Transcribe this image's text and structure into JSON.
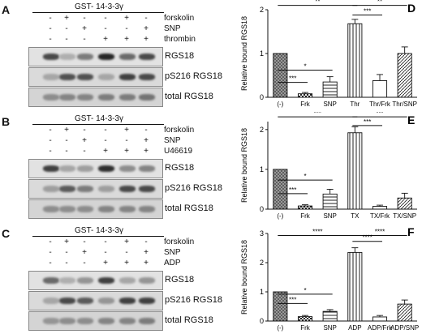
{
  "panels_left": [
    {
      "letter": "A",
      "header": "GST- 14-3-3γ",
      "treatments": [
        {
          "name": "forskolin",
          "signs": [
            "-",
            "+",
            "-",
            "-",
            "+",
            "-"
          ]
        },
        {
          "name": "SNP",
          "signs": [
            "-",
            "-",
            "+",
            "-",
            "-",
            "+"
          ]
        },
        {
          "name": "thrombin",
          "signs": [
            "-",
            "-",
            "-",
            "+",
            "+",
            "+"
          ]
        }
      ],
      "blots": [
        "RGS18",
        "pS216 RGS18",
        "total RGS18"
      ]
    },
    {
      "letter": "B",
      "header": "GST- 14-3-3γ",
      "treatments": [
        {
          "name": "forskolin",
          "signs": [
            "-",
            "+",
            "-",
            "-",
            "+",
            "-"
          ]
        },
        {
          "name": "SNP",
          "signs": [
            "-",
            "-",
            "+",
            "-",
            "-",
            "+"
          ]
        },
        {
          "name": "U46619",
          "signs": [
            "-",
            "-",
            "-",
            "+",
            "+",
            "+"
          ]
        }
      ],
      "blots": [
        "RGS18",
        "pS216 RGS18",
        "total RGS18"
      ]
    },
    {
      "letter": "C",
      "header": "GST- 14-3-3γ",
      "treatments": [
        {
          "name": "forskolin",
          "signs": [
            "-",
            "+",
            "-",
            "-",
            "+",
            "-"
          ]
        },
        {
          "name": "SNP",
          "signs": [
            "-",
            "-",
            "+",
            "-",
            "-",
            "+"
          ]
        },
        {
          "name": "ADP",
          "signs": [
            "-",
            "-",
            "-",
            "+",
            "+",
            "+"
          ]
        }
      ],
      "blots": [
        "RGS18",
        "pS216 RGS18",
        "total RGS18"
      ]
    }
  ],
  "chart_data": [
    {
      "letter": "D",
      "type": "bar",
      "ylabel": "Relative bound RGS18",
      "categories": [
        "(-)",
        "Frk",
        "SNP",
        "Thr",
        "Thr/Frk",
        "Thr/SNP"
      ],
      "values": [
        1.0,
        0.08,
        0.35,
        1.68,
        0.38,
        1.0
      ],
      "errors": [
        0.0,
        0.03,
        0.12,
        0.1,
        0.14,
        0.15
      ],
      "ylim": [
        0,
        2
      ],
      "yticks": [
        "0",
        "1",
        "2"
      ],
      "patterns": [
        "dots",
        "checker",
        "hstripes",
        "vstripes",
        "plain",
        "hatch"
      ],
      "sig": [
        {
          "from": 0,
          "to": 3,
          "label": "**",
          "level": 2.1
        },
        {
          "from": 3,
          "to": 5,
          "label": "**",
          "level": 2.1
        },
        {
          "from": 0,
          "to": 2,
          "label": "*",
          "level": 0.62
        },
        {
          "from": 0,
          "to": 1,
          "label": "***",
          "level": 0.34
        },
        {
          "from": 3,
          "to": 4,
          "label": "***",
          "level": 1.88
        }
      ]
    },
    {
      "letter": "E",
      "type": "bar",
      "ylabel": "Relative bound RGS18",
      "categories": [
        "(-)",
        "Frk",
        "SNP",
        "TX",
        "TX/Frk",
        "TX/SNP"
      ],
      "values": [
        1.0,
        0.08,
        0.38,
        1.92,
        0.07,
        0.28
      ],
      "errors": [
        0.0,
        0.03,
        0.12,
        0.15,
        0.03,
        0.12
      ],
      "ylim": [
        0,
        2.2
      ],
      "yticks": [
        "0",
        "1",
        "2"
      ],
      "patterns": [
        "dots",
        "checker",
        "hstripes",
        "vstripes",
        "plain",
        "hatch"
      ],
      "sig": [
        {
          "from": 0,
          "to": 3,
          "label": "***",
          "level": 2.32
        },
        {
          "from": 3,
          "to": 5,
          "label": "***",
          "level": 2.32
        },
        {
          "from": 0,
          "to": 2,
          "label": "*",
          "level": 0.73
        },
        {
          "from": 0,
          "to": 1,
          "label": "***",
          "level": 0.39
        },
        {
          "from": 3,
          "to": 4,
          "label": "***",
          "level": 2.1
        }
      ]
    },
    {
      "letter": "F",
      "type": "bar",
      "ylabel": "Relative bound RGS18",
      "categories": [
        "(-)",
        "Frk",
        "SNP",
        "ADP",
        "ADP/Frk",
        "ADP/SNP"
      ],
      "values": [
        1.0,
        0.15,
        0.33,
        2.35,
        0.14,
        0.58
      ],
      "errors": [
        0.0,
        0.04,
        0.06,
        0.16,
        0.05,
        0.14
      ],
      "ylim": [
        0,
        3
      ],
      "yticks": [
        "0",
        "1",
        "2",
        "3"
      ],
      "patterns": [
        "dots",
        "checker",
        "hstripes",
        "vstripes",
        "plain",
        "hatch"
      ],
      "sig": [
        {
          "from": 0,
          "to": 3,
          "label": "****",
          "level": 2.93
        },
        {
          "from": 3,
          "to": 5,
          "label": "****",
          "level": 2.93
        },
        {
          "from": 0,
          "to": 2,
          "label": "*",
          "level": 0.92
        },
        {
          "from": 0,
          "to": 1,
          "label": "***",
          "level": 0.6
        },
        {
          "from": 3,
          "to": 4,
          "label": "****",
          "level": 2.73
        }
      ]
    }
  ]
}
